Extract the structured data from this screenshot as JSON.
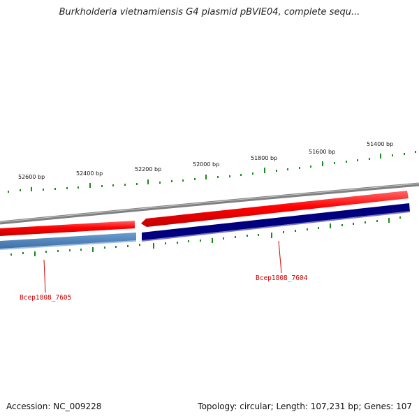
{
  "header": {
    "title": "Burkholderia vietnamiensis G4 plasmid pBVIE04, complete sequ..."
  },
  "map": {
    "scale_labels": [
      "52600 bp",
      "52400 bp",
      "52200 bp",
      "52000 bp",
      "51800 bp",
      "51600 bp",
      "51400 bp"
    ],
    "genes": [
      {
        "label": "Bcep1808_7605"
      },
      {
        "label": "Bcep1808_7604"
      }
    ],
    "colors": {
      "outer_track": "#808080",
      "forward_track": "#ff0000",
      "reverse_track_left": "#4a7fb5",
      "reverse_track_right": "#00007f",
      "ticks": "#1a8a1a",
      "gene_labels": "#d00000"
    }
  },
  "footer": {
    "accession": "Accession: NC_009228",
    "summary": "Topology: circular; Length: 107,231 bp; Genes: 107"
  }
}
